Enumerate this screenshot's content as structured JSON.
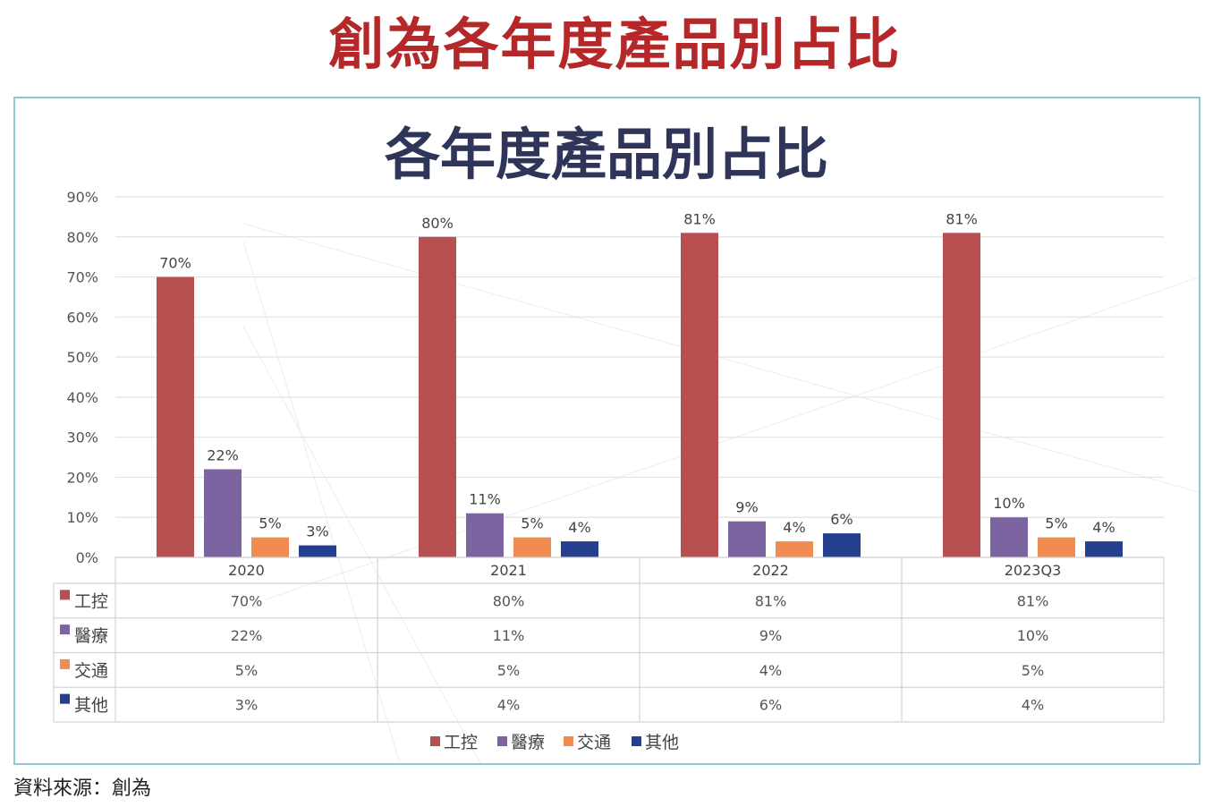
{
  "page": {
    "title": "創為各年度產品別占比",
    "source": "資料來源：創為"
  },
  "chart_data": {
    "type": "bar",
    "title": "各年度產品別占比",
    "categories": [
      "2020",
      "2021",
      "2022",
      "2023Q3"
    ],
    "series": [
      {
        "name": "工控",
        "color": "#b85052",
        "values": [
          70,
          80,
          81,
          81
        ],
        "labels": [
          "70%",
          "80%",
          "81%",
          "81%"
        ]
      },
      {
        "name": "醫療",
        "color": "#7b64a0",
        "values": [
          22,
          11,
          9,
          10
        ],
        "labels": [
          "22%",
          "11%",
          "9%",
          "10%"
        ]
      },
      {
        "name": "交通",
        "color": "#f08c4f",
        "values": [
          5,
          5,
          4,
          5
        ],
        "labels": [
          "5%",
          "5%",
          "4%",
          "5%"
        ]
      },
      {
        "name": "其他",
        "color": "#243f8f",
        "values": [
          3,
          4,
          6,
          4
        ],
        "labels": [
          "3%",
          "4%",
          "6%",
          "4%"
        ]
      }
    ],
    "ylim": [
      0,
      90
    ],
    "yticks": [
      "0%",
      "10%",
      "20%",
      "30%",
      "40%",
      "50%",
      "60%",
      "70%",
      "80%",
      "90%"
    ],
    "grid": true,
    "legend": "bottom",
    "data_table": true
  }
}
